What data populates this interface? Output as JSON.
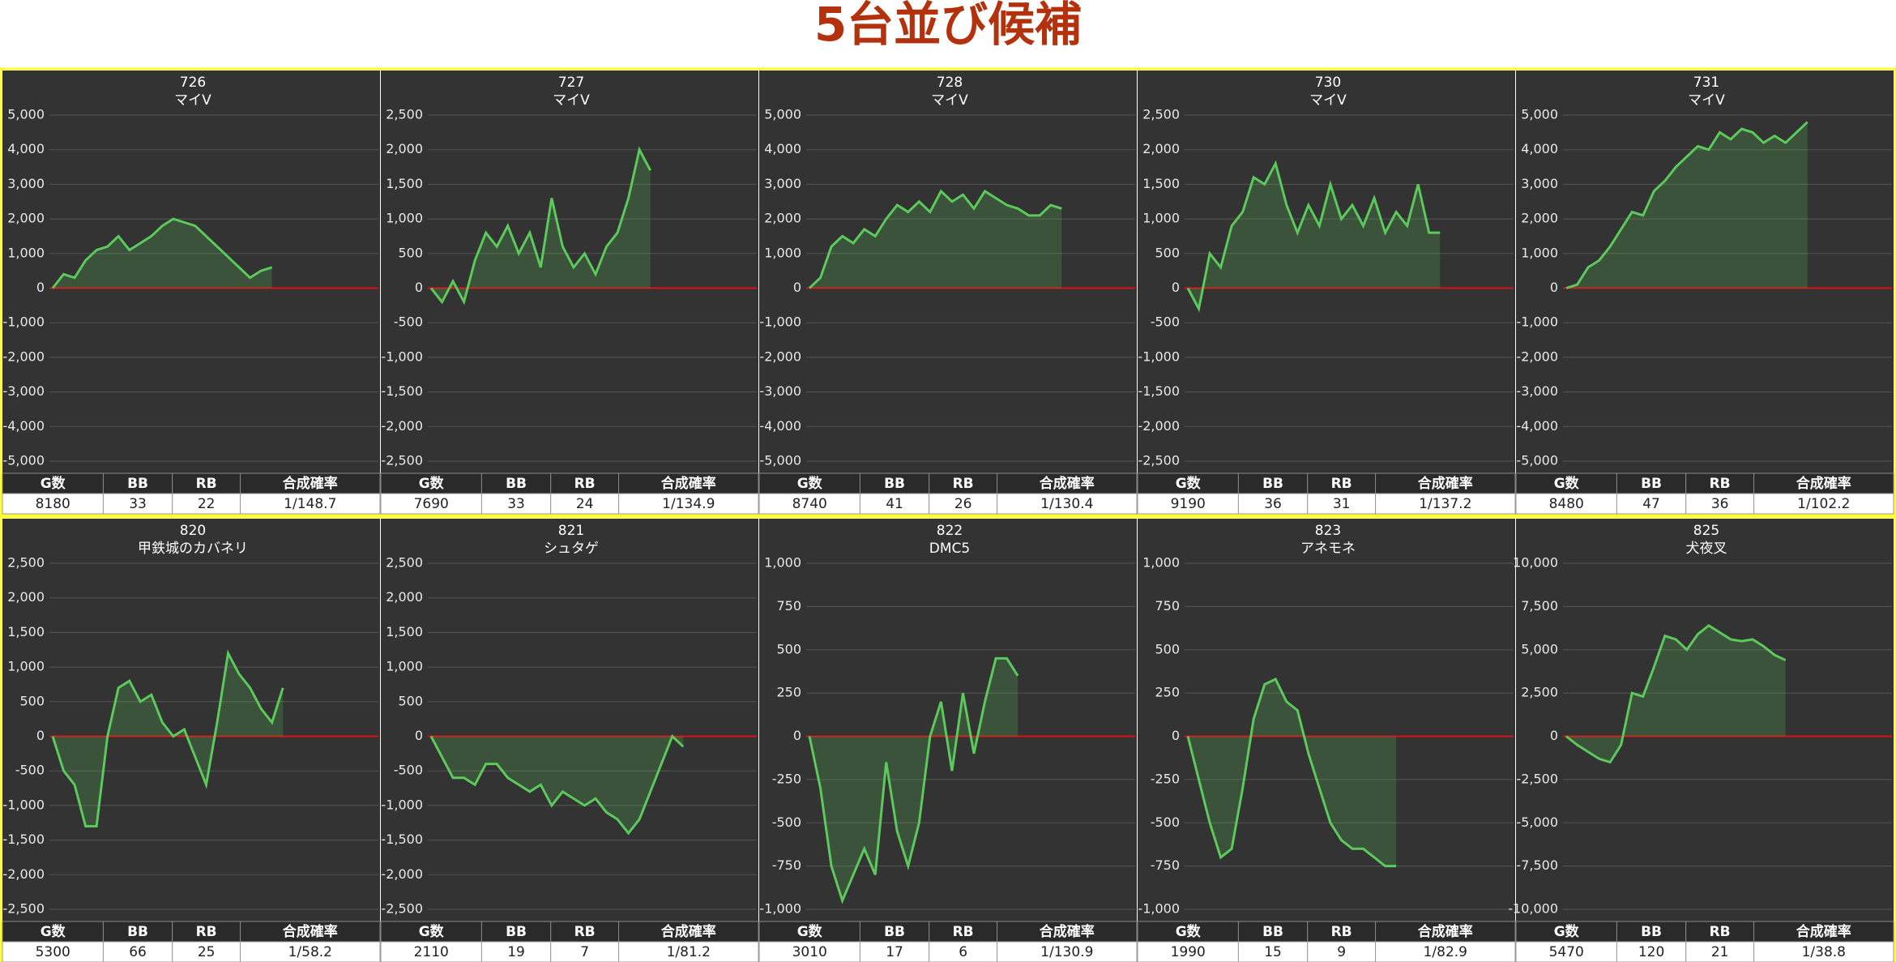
{
  "title": "5台並び候補",
  "chart_data": [
    {
      "type": "line",
      "title": "726",
      "subtitle": "マイV",
      "color": "#5cc95c",
      "values": [
        0,
        400,
        300,
        800,
        1100,
        1200,
        1500,
        1100,
        1300,
        1500,
        1800,
        2000,
        1900,
        1800,
        1500,
        1200,
        900,
        600,
        300,
        500,
        600
      ],
      "ylim": [
        -5000,
        5000
      ],
      "yticks": [
        {
          "value": -5000,
          "label": "-5,000"
        },
        {
          "value": -4000,
          "label": "-4,000"
        },
        {
          "value": -3000,
          "label": "-3,000"
        },
        {
          "value": -2000,
          "label": "-2,000"
        },
        {
          "value": -1000,
          "label": "-1,000"
        },
        0,
        {
          "value": 1000,
          "label": "1,000"
        },
        {
          "value": 2000,
          "label": "2,000"
        },
        {
          "value": 3000,
          "label": "3,000"
        },
        {
          "value": 4000,
          "label": "4,000"
        },
        {
          "value": 5000,
          "label": "5,000"
        }
      ],
      "grid": true,
      "stats": {
        "headers": [
          "G数",
          "BB",
          "RB",
          "合成確率"
        ],
        "row": [
          8180,
          33,
          22,
          "1/148.7"
        ]
      }
    },
    {
      "type": "line",
      "title": "727",
      "subtitle": "マイV",
      "color": "#5cc95c",
      "values": [
        0,
        -200,
        100,
        -200,
        400,
        800,
        600,
        900,
        500,
        800,
        300,
        1300,
        600,
        300,
        500,
        200,
        600,
        800,
        1300,
        2000,
        1700
      ],
      "ylim": [
        -2500,
        2500
      ],
      "yticks": [
        {
          "value": -2500,
          "label": "-2,500"
        },
        {
          "value": -2000,
          "label": "-2,000"
        },
        {
          "value": -1500,
          "label": "-1,500"
        },
        {
          "value": -1000,
          "label": "-1,000"
        },
        -500,
        0,
        500,
        {
          "value": 1000,
          "label": "1,000"
        },
        {
          "value": 1500,
          "label": "1,500"
        },
        {
          "value": 2000,
          "label": "2,000"
        },
        {
          "value": 2500,
          "label": "2,500"
        }
      ],
      "grid": true,
      "stats": {
        "headers": [
          "G数",
          "BB",
          "RB",
          "合成確率"
        ],
        "row": [
          7690,
          33,
          24,
          "1/134.9"
        ]
      }
    },
    {
      "type": "line",
      "title": "728",
      "subtitle": "マイV",
      "color": "#5cc95c",
      "values": [
        0,
        300,
        1200,
        1500,
        1300,
        1700,
        1500,
        2000,
        2400,
        2200,
        2500,
        2200,
        2800,
        2500,
        2700,
        2300,
        2800,
        2600,
        2400,
        2300,
        2100,
        2100,
        2400,
        2300
      ],
      "ylim": [
        -5000,
        5000
      ],
      "yticks": [
        {
          "value": -5000,
          "label": "-5,000"
        },
        {
          "value": -4000,
          "label": "-4,000"
        },
        {
          "value": -3000,
          "label": "-3,000"
        },
        {
          "value": -2000,
          "label": "-2,000"
        },
        {
          "value": -1000,
          "label": "-1,000"
        },
        0,
        {
          "value": 1000,
          "label": "1,000"
        },
        {
          "value": 2000,
          "label": "2,000"
        },
        {
          "value": 3000,
          "label": "3,000"
        },
        {
          "value": 4000,
          "label": "4,000"
        },
        {
          "value": 5000,
          "label": "5,000"
        }
      ],
      "grid": true,
      "stats": {
        "headers": [
          "G数",
          "BB",
          "RB",
          "合成確率"
        ],
        "row": [
          8740,
          41,
          26,
          "1/130.4"
        ]
      }
    },
    {
      "type": "line",
      "title": "730",
      "subtitle": "マイV",
      "color": "#5cc95c",
      "values": [
        0,
        -300,
        500,
        300,
        900,
        1100,
        1600,
        1500,
        1800,
        1200,
        800,
        1200,
        900,
        1500,
        1000,
        1200,
        900,
        1300,
        800,
        1100,
        900,
        1500,
        800,
        800
      ],
      "ylim": [
        -2500,
        2500
      ],
      "yticks": [
        {
          "value": -2500,
          "label": "-2,500"
        },
        {
          "value": -2000,
          "label": "-2,000"
        },
        {
          "value": -1500,
          "label": "-1,500"
        },
        {
          "value": -1000,
          "label": "-1,000"
        },
        -500,
        0,
        500,
        {
          "value": 1000,
          "label": "1,000"
        },
        {
          "value": 1500,
          "label": "1,500"
        },
        {
          "value": 2000,
          "label": "2,000"
        },
        {
          "value": 2500,
          "label": "2,500"
        }
      ],
      "grid": true,
      "stats": {
        "headers": [
          "G数",
          "BB",
          "RB",
          "合成確率"
        ],
        "row": [
          9190,
          36,
          31,
          "1/137.2"
        ]
      }
    },
    {
      "type": "line",
      "title": "731",
      "subtitle": "マイV",
      "color": "#5cc95c",
      "values": [
        0,
        100,
        600,
        800,
        1200,
        1700,
        2200,
        2100,
        2800,
        3100,
        3500,
        3800,
        4100,
        4000,
        4500,
        4300,
        4600,
        4500,
        4200,
        4400,
        4200,
        4500,
        4800
      ],
      "ylim": [
        -5000,
        5000
      ],
      "yticks": [
        {
          "value": -5000,
          "label": "-5,000"
        },
        {
          "value": -4000,
          "label": "-4,000"
        },
        {
          "value": -3000,
          "label": "-3,000"
        },
        {
          "value": -2000,
          "label": "-2,000"
        },
        {
          "value": -1000,
          "label": "-1,000"
        },
        0,
        {
          "value": 1000,
          "label": "1,000"
        },
        {
          "value": 2000,
          "label": "2,000"
        },
        {
          "value": 3000,
          "label": "3,000"
        },
        {
          "value": 4000,
          "label": "4,000"
        },
        {
          "value": 5000,
          "label": "5,000"
        }
      ],
      "grid": true,
      "stats": {
        "headers": [
          "G数",
          "BB",
          "RB",
          "合成確率"
        ],
        "row": [
          8480,
          47,
          36,
          "1/102.2"
        ]
      }
    },
    {
      "type": "line",
      "title": "820",
      "subtitle": "甲鉄城のカバネリ",
      "color": "#5cc95c",
      "values": [
        0,
        -500,
        -700,
        -1300,
        -1300,
        0,
        700,
        800,
        500,
        600,
        200,
        0,
        100,
        -300,
        -700,
        200,
        1200,
        900,
        700,
        400,
        200,
        700
      ],
      "ylim": [
        -2500,
        2500
      ],
      "yticks": [
        {
          "value": -2500,
          "label": "-2,500"
        },
        {
          "value": -2000,
          "label": "-2,000"
        },
        {
          "value": -1500,
          "label": "-1,500"
        },
        {
          "value": -1000,
          "label": "-1,000"
        },
        -500,
        0,
        500,
        {
          "value": 1000,
          "label": "1,000"
        },
        {
          "value": 1500,
          "label": "1,500"
        },
        {
          "value": 2000,
          "label": "2,000"
        },
        {
          "value": 2500,
          "label": "2,500"
        }
      ],
      "grid": true,
      "stats": {
        "headers": [
          "G数",
          "BB",
          "RB",
          "合成確率"
        ],
        "row": [
          5300,
          66,
          25,
          "1/58.2"
        ]
      }
    },
    {
      "type": "line",
      "title": "821",
      "subtitle": "シュタゲ",
      "color": "#5cc95c",
      "values": [
        0,
        -300,
        -600,
        -600,
        -700,
        -400,
        -400,
        -600,
        -700,
        -800,
        -700,
        -1000,
        -800,
        -900,
        -1000,
        -900,
        -1100,
        -1200,
        -1400,
        -1200,
        -800,
        -400,
        0,
        -150
      ],
      "ylim": [
        -2500,
        2500
      ],
      "yticks": [
        {
          "value": -2500,
          "label": "-2,500"
        },
        {
          "value": -2000,
          "label": "-2,000"
        },
        {
          "value": -1500,
          "label": "-1,500"
        },
        {
          "value": -1000,
          "label": "-1,000"
        },
        -500,
        0,
        500,
        {
          "value": 1000,
          "label": "1,000"
        },
        {
          "value": 1500,
          "label": "1,500"
        },
        {
          "value": 2000,
          "label": "2,000"
        },
        {
          "value": 2500,
          "label": "2,500"
        }
      ],
      "grid": true,
      "stats": {
        "headers": [
          "G数",
          "BB",
          "RB",
          "合成確率"
        ],
        "row": [
          2110,
          19,
          7,
          "1/81.2"
        ]
      }
    },
    {
      "type": "line",
      "title": "822",
      "subtitle": "DMC5",
      "color": "#5cc95c",
      "values": [
        0,
        -300,
        -750,
        -950,
        -800,
        -650,
        -800,
        -150,
        -550,
        -750,
        -500,
        0,
        200,
        -200,
        250,
        -100,
        200,
        450,
        450,
        350
      ],
      "ylim": [
        -1000,
        1000
      ],
      "yticks": [
        {
          "value": -1000,
          "label": "-1,000"
        },
        -750,
        -500,
        -250,
        0,
        250,
        500,
        750,
        {
          "value": 1000,
          "label": "1,000"
        }
      ],
      "grid": true,
      "stats": {
        "headers": [
          "G数",
          "BB",
          "RB",
          "合成確率"
        ],
        "row": [
          3010,
          17,
          6,
          "1/130.9"
        ]
      }
    },
    {
      "type": "line",
      "title": "823",
      "subtitle": "アネモネ",
      "color": "#5cc95c",
      "values": [
        0,
        -250,
        -500,
        -700,
        -650,
        -300,
        100,
        300,
        330,
        200,
        150,
        -100,
        -300,
        -500,
        -600,
        -650,
        -650,
        -700,
        -750,
        -750
      ],
      "ylim": [
        -1000,
        1000
      ],
      "yticks": [
        {
          "value": -1000,
          "label": "-1,000"
        },
        -750,
        -500,
        -250,
        0,
        250,
        500,
        750,
        {
          "value": 1000,
          "label": "1,000"
        }
      ],
      "grid": true,
      "stats": {
        "headers": [
          "G数",
          "BB",
          "RB",
          "合成確率"
        ],
        "row": [
          1990,
          15,
          9,
          "1/82.9"
        ]
      }
    },
    {
      "type": "line",
      "title": "825",
      "subtitle": "犬夜叉",
      "color": "#5cc95c",
      "values": [
        0,
        -500,
        -900,
        -1300,
        -1500,
        -500,
        2500,
        2300,
        4000,
        5800,
        5600,
        5000,
        5900,
        6400,
        6000,
        5600,
        5500,
        5600,
        5200,
        4700,
        4400
      ],
      "ylim": [
        -10000,
        10000
      ],
      "yticks": [
        {
          "value": -10000,
          "label": "-10,000"
        },
        {
          "value": -7500,
          "label": "-7,500"
        },
        {
          "value": -5000,
          "label": "-5,000"
        },
        {
          "value": -2500,
          "label": "-2,500"
        },
        0,
        {
          "value": 2500,
          "label": "2,500"
        },
        {
          "value": 5000,
          "label": "5,000"
        },
        {
          "value": 7500,
          "label": "7,500"
        },
        {
          "value": 10000,
          "label": "10,000"
        }
      ],
      "grid": true,
      "stats": {
        "headers": [
          "G数",
          "BB",
          "RB",
          "合成確率"
        ],
        "row": [
          5470,
          120,
          21,
          "1/38.8"
        ]
      }
    }
  ]
}
